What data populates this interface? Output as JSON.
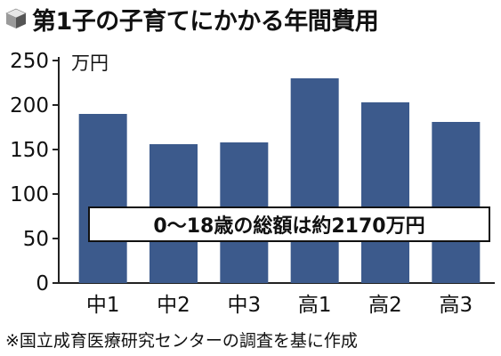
{
  "title": "第1子の子育てにかかる年間費用",
  "chart_data": {
    "type": "bar",
    "categories": [
      "中1",
      "中2",
      "中3",
      "高1",
      "高2",
      "高3"
    ],
    "values": [
      190,
      156,
      158,
      230,
      203,
      181
    ],
    "unit_label": "万円",
    "ylim": [
      0,
      250
    ],
    "yticks": [
      0,
      50,
      100,
      150,
      200,
      250
    ],
    "annotation": "0〜18歳の総額は約2170万円",
    "grid": false,
    "bar_color": "#3c5a8c"
  },
  "source": "※国立成育医療研究センターの調査を基に作成",
  "colors": {
    "bar": "#3c5a8c",
    "axis": "#222222",
    "cube_top": "#e6e6e6",
    "cube_left": "#9a9a9a",
    "cube_right": "#555555"
  }
}
